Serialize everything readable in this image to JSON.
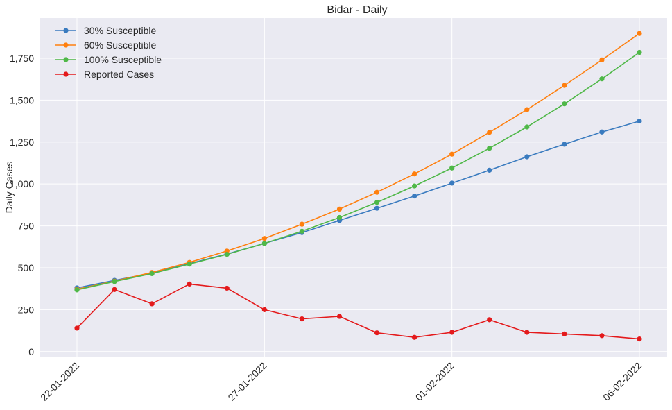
{
  "chart_data": {
    "type": "line",
    "title": "Bidar - Daily",
    "xlabel": "",
    "ylabel": "Daily Cases",
    "x": [
      "22-01-2022",
      "23-01-2022",
      "24-01-2022",
      "25-01-2022",
      "26-01-2022",
      "27-01-2022",
      "28-01-2022",
      "29-01-2022",
      "30-01-2022",
      "31-01-2022",
      "01-02-2022",
      "02-02-2022",
      "03-02-2022",
      "04-02-2022",
      "05-02-2022",
      "06-02-2022"
    ],
    "xticks": [
      "22-01-2022",
      "27-01-2022",
      "01-02-2022",
      "06-02-2022"
    ],
    "yticks": [
      "0",
      "250",
      "500",
      "750",
      "1,000",
      "1,250",
      "1,500",
      "1,750"
    ],
    "ylim": [
      -30,
      1990
    ],
    "grid": true,
    "legend_position": "top-left",
    "series": [
      {
        "name": "30% Susceptible",
        "color": "#3a7bbf",
        "values": [
          380,
          425,
          468,
          525,
          582,
          645,
          710,
          782,
          855,
          928,
          1005,
          1082,
          1162,
          1237,
          1310,
          1375
        ]
      },
      {
        "name": "60% Susceptible",
        "color": "#ff7f0e",
        "values": [
          372,
          420,
          472,
          532,
          600,
          675,
          760,
          850,
          950,
          1060,
          1178,
          1308,
          1443,
          1588,
          1740,
          1898
        ]
      },
      {
        "name": "100% Susceptible",
        "color": "#4fb848",
        "values": [
          368,
          418,
          465,
          522,
          580,
          645,
          718,
          800,
          890,
          988,
          1095,
          1213,
          1340,
          1478,
          1627,
          1785
        ]
      },
      {
        "name": "Reported Cases",
        "color": "#e41a1c",
        "values": [
          140,
          370,
          285,
          403,
          378,
          250,
          195,
          210,
          112,
          85,
          115,
          190,
          115,
          105,
          95,
          75
        ]
      }
    ]
  }
}
